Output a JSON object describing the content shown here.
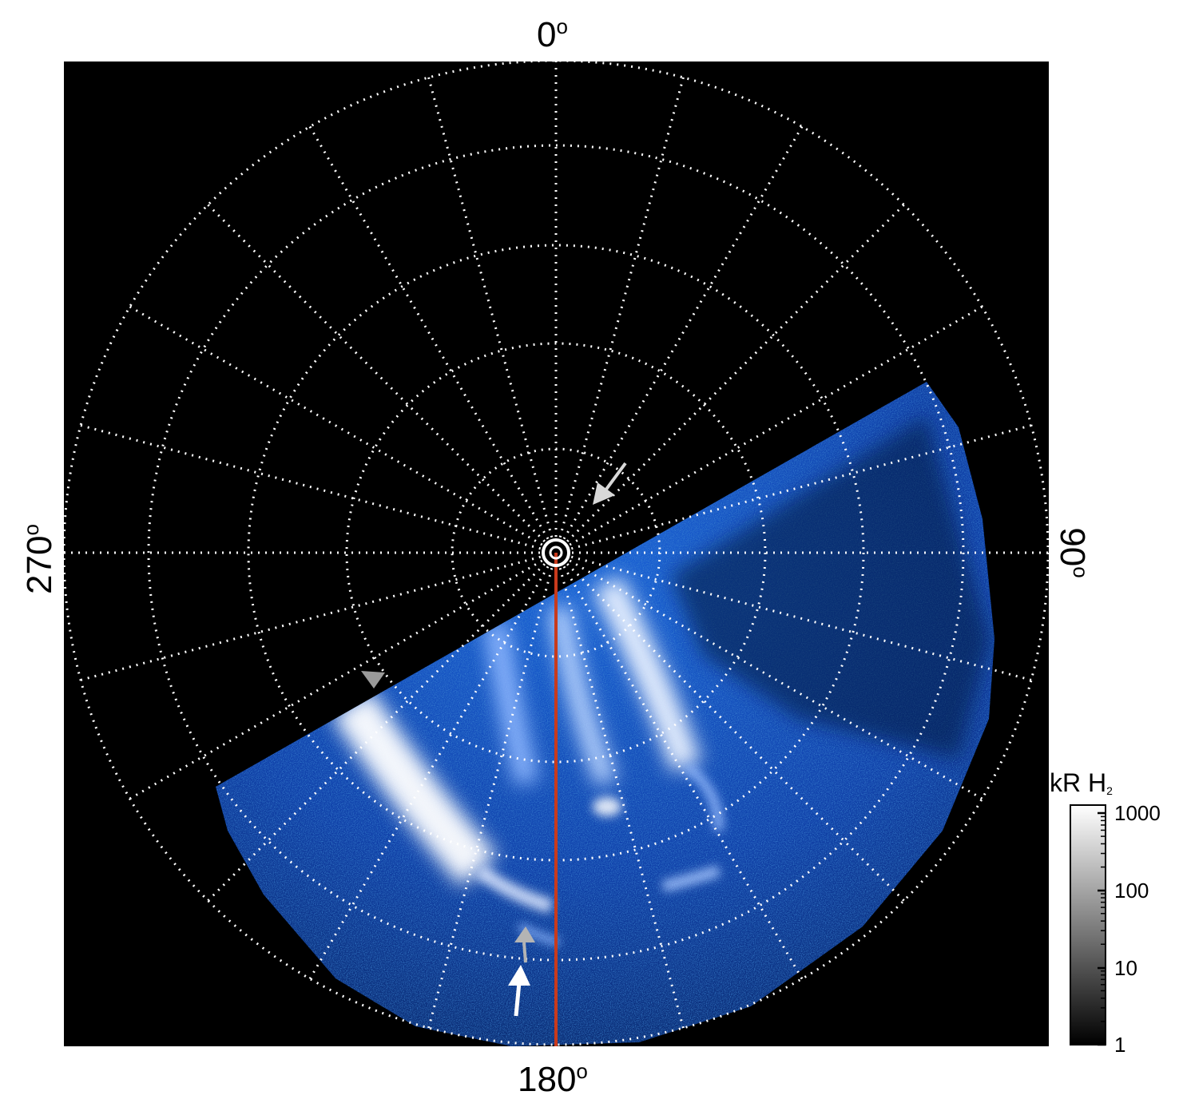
{
  "figure": {
    "angle_labels": {
      "top": "0",
      "right": "90",
      "bottom": "180",
      "left": "270",
      "degree_symbol": "o"
    },
    "colorbar": {
      "title": "kR H",
      "title_subscript": "2",
      "scale": "log",
      "tick_labels": [
        "1000",
        "100",
        "10",
        "1"
      ],
      "colors": [
        "#000000",
        "#ffffff"
      ]
    },
    "colors": {
      "background": "#000000",
      "grid": "#ffffff",
      "aurora_low": "#0a2a7a",
      "aurora_mid": "#1f6fe6",
      "aurora_high": "#ffffff",
      "meridian_line": "#c83a1c",
      "arrow_white": "#ffffff",
      "arrow_gray": "#b4b4b4"
    },
    "icons": [
      "arrow-icon",
      "triangle-marker-icon",
      "pole-marker-icon"
    ]
  }
}
